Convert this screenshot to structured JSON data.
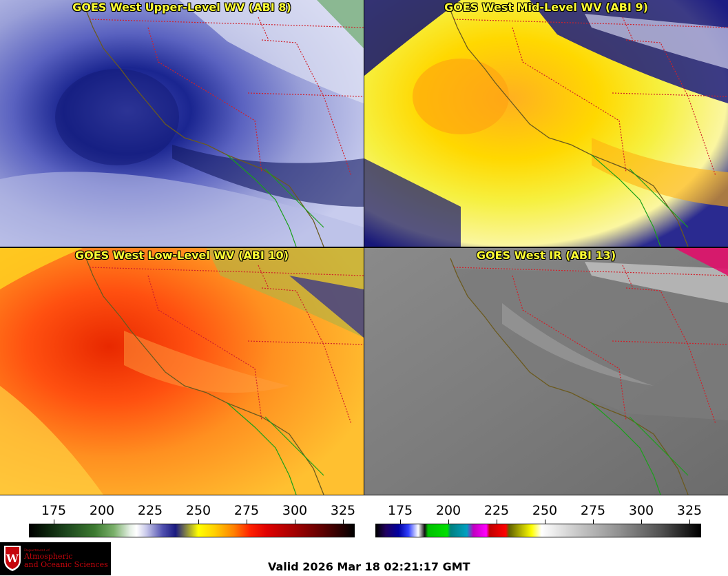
{
  "panels": [
    {
      "title": "GOES West Upper-Level WV (ABI 8)"
    },
    {
      "title": "GOES West Mid-Level WV (ABI 9)"
    },
    {
      "title": "GOES West Low-Level WV (ABI 10)"
    },
    {
      "title": "GOES West IR (ABI 13)"
    }
  ],
  "colorbars": [
    {
      "name": "water-vapor",
      "ticks": [
        "175",
        "200",
        "225",
        "250",
        "275",
        "300",
        "325"
      ]
    },
    {
      "name": "infrared",
      "ticks": [
        "175",
        "200",
        "225",
        "250",
        "275",
        "300",
        "325"
      ]
    }
  ],
  "logo": {
    "department": "Department of",
    "line1": "Atmospheric",
    "line2": "and Oceanic Sciences"
  },
  "valid_time": "Valid 2026 Mar 18 02:21:17 GMT",
  "colors": {
    "title_text": "#ffff33",
    "state_border": "#d0202a",
    "coastline": "#6b5a1f",
    "mexico_coast": "#1aa01a",
    "logo_red": "#c5050c"
  },
  "icons": [
    "uw-crest-icon"
  ]
}
